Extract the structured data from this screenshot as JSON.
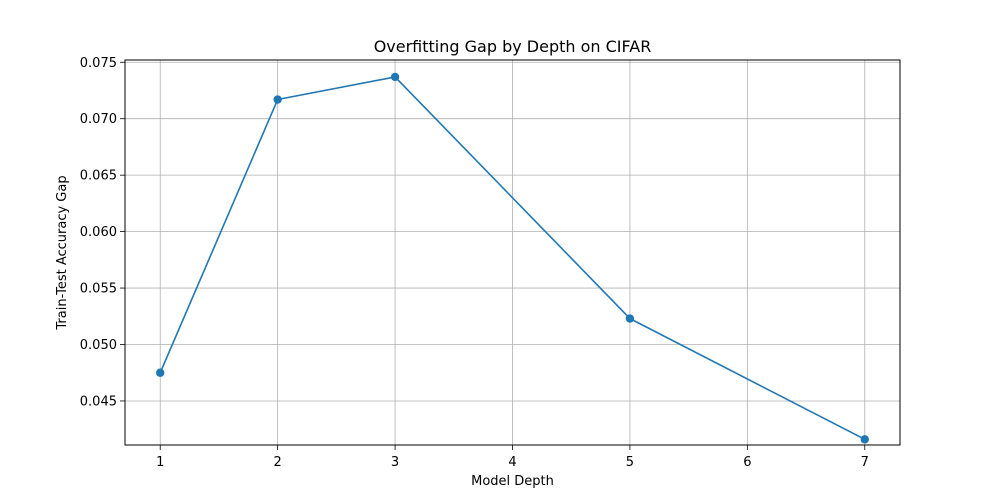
{
  "chart_data": {
    "type": "line",
    "title": "Overfitting Gap by Depth on CIFAR",
    "xlabel": "Model Depth",
    "ylabel": "Train-Test Accuracy Gap",
    "x": [
      1,
      2,
      3,
      5,
      7
    ],
    "series": [
      {
        "values": [
          0.0475,
          0.0717,
          0.0737,
          0.0523,
          0.0416
        ]
      }
    ],
    "xlim": [
      0.7,
      7.3
    ],
    "ylim": [
      0.0411,
      0.0752
    ],
    "xticks": [
      1,
      2,
      3,
      4,
      5,
      6,
      7
    ],
    "yticks": [
      0.045,
      0.05,
      0.055,
      0.06,
      0.065,
      0.07,
      0.075
    ],
    "xtick_labels": [
      "1",
      "2",
      "3",
      "4",
      "5",
      "6",
      "7"
    ],
    "ytick_labels": [
      "0.045",
      "0.050",
      "0.055",
      "0.060",
      "0.065",
      "0.070",
      "0.075"
    ],
    "grid": true,
    "line_color": "#1f77b4",
    "marker": "circle"
  }
}
